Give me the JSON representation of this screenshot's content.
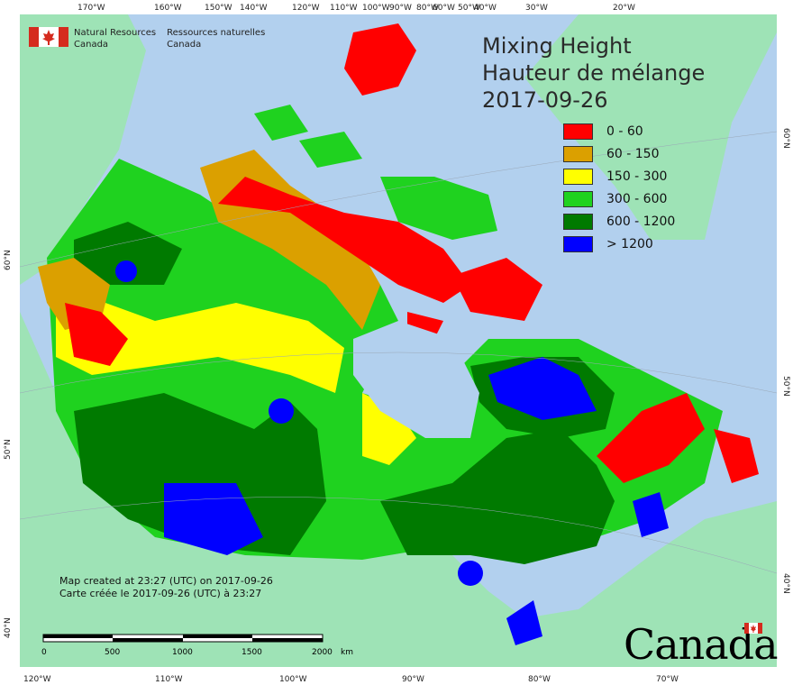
{
  "title": {
    "line1": "Mixing Height",
    "line2": "Hauteur de mélange",
    "date": "2017-09-26"
  },
  "legend": [
    {
      "label": "0 - 60",
      "color": "#ff0000"
    },
    {
      "label": "60 - 150",
      "color": "#dba000"
    },
    {
      "label": "150 - 300",
      "color": "#ffff00"
    },
    {
      "label": "300 - 600",
      "color": "#1fd21f"
    },
    {
      "label": "600 - 1200",
      "color": "#007a00"
    },
    {
      "label": "> 1200",
      "color": "#0000ff"
    }
  ],
  "agency": {
    "en_line1": "Natural Resources",
    "en_line2": "Canada",
    "fr_line1": "Ressources naturelles",
    "fr_line2": "Canada"
  },
  "notes": {
    "en": "Map created at 23:27 (UTC) on 2017-09-26",
    "fr": "Carte créée le 2017-09-26 (UTC) à 23:27"
  },
  "scale": {
    "labels": [
      "0",
      "500",
      "1000",
      "1500",
      "2000"
    ],
    "unit": "km"
  },
  "wordmark": "Canada",
  "top_ticks": [
    "170°W",
    "160°W",
    "150°W",
    "140°W",
    "120°W",
    "110°W",
    "100°W",
    "90°W",
    "80°W",
    "60°W",
    "50°W",
    "40°W",
    "30°W",
    "20°W"
  ],
  "bottom_ticks": [
    "120°W",
    "110°W",
    "100°W",
    "90°W",
    "80°W",
    "70°W"
  ],
  "left_ticks": [
    "60°N",
    "50°N",
    "40°N"
  ],
  "right_ticks": [
    "60°N",
    "50°N",
    "40°N"
  ],
  "colors": {
    "ocean": "#b2d0ee",
    "foreign_land": "#9ee3b6"
  }
}
